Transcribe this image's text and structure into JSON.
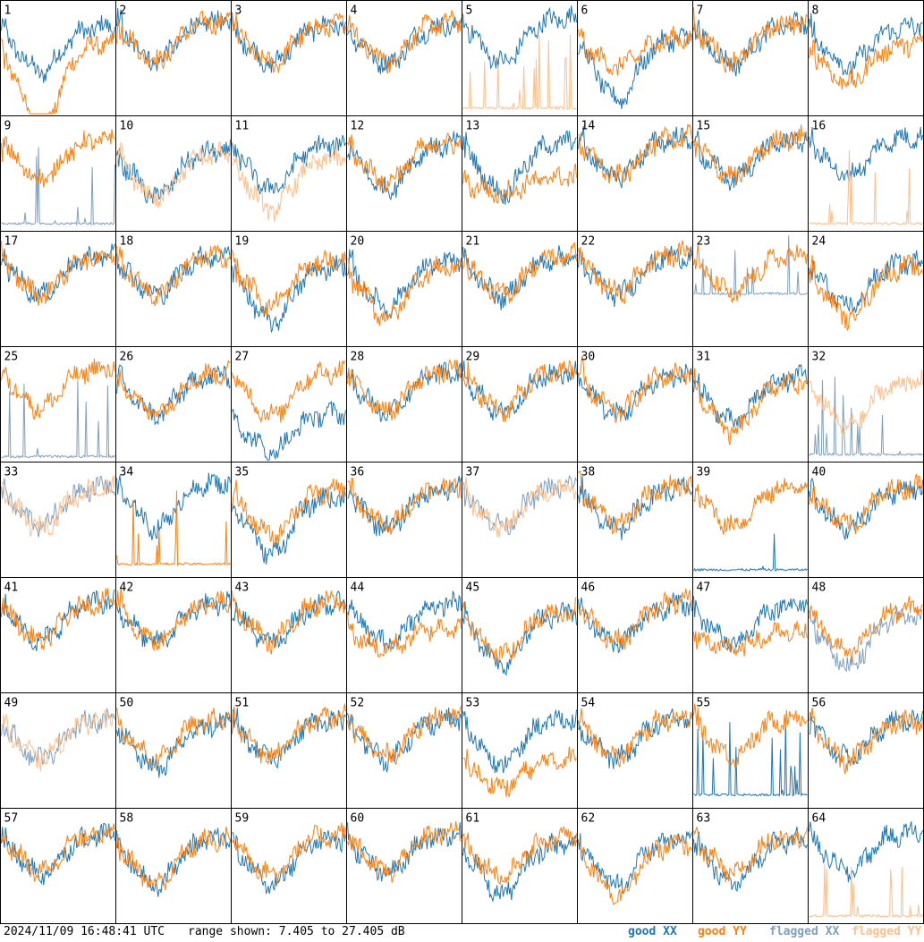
{
  "chart_data": {
    "type": "line",
    "grid": {
      "rows": 8,
      "cols": 8
    },
    "y_range_db": [
      7.405,
      27.405
    ],
    "panels": [
      {
        "label": "1",
        "xx": "good",
        "yy": "good",
        "xx_level": 0.7,
        "yy_level": 0.55,
        "xx_drop": 0.35,
        "yy_drop": 0.7
      },
      {
        "label": "2",
        "xx": "good",
        "yy": "good",
        "xx_level": 0.75,
        "yy_level": 0.75,
        "xx_drop": 0.3,
        "yy_drop": 0.3
      },
      {
        "label": "3",
        "xx": "good",
        "yy": "good",
        "xx_level": 0.72,
        "yy_level": 0.72,
        "xx_drop": 0.3,
        "yy_drop": 0.3
      },
      {
        "label": "4",
        "xx": "good",
        "yy": "good",
        "xx_level": 0.72,
        "yy_level": 0.74,
        "xx_drop": 0.3,
        "yy_drop": 0.3
      },
      {
        "label": "5",
        "xx": "good",
        "yy": "flagged-spiky",
        "xx_level": 0.78,
        "yy_level": 0.05,
        "xx_drop": 0.35,
        "yy_drop": 0.0
      },
      {
        "label": "6",
        "xx": "good",
        "yy": "good",
        "xx_level": 0.6,
        "yy_level": 0.6,
        "xx_drop": 0.5,
        "yy_drop": 0.2
      },
      {
        "label": "7",
        "xx": "good",
        "yy": "good",
        "xx_level": 0.72,
        "yy_level": 0.74,
        "xx_drop": 0.3,
        "yy_drop": 0.3
      },
      {
        "label": "8",
        "xx": "good",
        "yy": "good",
        "xx_level": 0.7,
        "yy_level": 0.55,
        "xx_drop": 0.3,
        "yy_drop": 0.3
      },
      {
        "label": "9",
        "xx": "flagged-spiky",
        "yy": "good",
        "xx_level": 0.05,
        "yy_level": 0.72,
        "xx_drop": 0.0,
        "yy_drop": 0.3
      },
      {
        "label": "10",
        "xx": "good",
        "yy": "flagged",
        "xx_level": 0.62,
        "yy_level": 0.6,
        "xx_drop": 0.35,
        "yy_drop": 0.35
      },
      {
        "label": "11",
        "xx": "good",
        "yy": "flagged",
        "xx_level": 0.68,
        "yy_level": 0.55,
        "xx_drop": 0.35,
        "yy_drop": 0.4
      },
      {
        "label": "12",
        "xx": "good",
        "yy": "good",
        "xx_level": 0.68,
        "yy_level": 0.7,
        "xx_drop": 0.35,
        "yy_drop": 0.3
      },
      {
        "label": "13",
        "xx": "good",
        "yy": "good",
        "xx_level": 0.7,
        "yy_level": 0.4,
        "xx_drop": 0.4,
        "yy_drop": 0.1
      },
      {
        "label": "14",
        "xx": "good",
        "yy": "good",
        "xx_level": 0.74,
        "yy_level": 0.74,
        "xx_drop": 0.3,
        "yy_drop": 0.3
      },
      {
        "label": "15",
        "xx": "good",
        "yy": "good",
        "xx_level": 0.72,
        "yy_level": 0.74,
        "xx_drop": 0.3,
        "yy_drop": 0.3
      },
      {
        "label": "16",
        "xx": "good",
        "yy": "flagged-spiky",
        "xx_level": 0.75,
        "yy_level": 0.05,
        "xx_drop": 0.3,
        "yy_drop": 0.0
      },
      {
        "label": "17",
        "xx": "good",
        "yy": "good",
        "xx_level": 0.72,
        "yy_level": 0.72,
        "xx_drop": 0.3,
        "yy_drop": 0.3
      },
      {
        "label": "18",
        "xx": "good",
        "yy": "good",
        "xx_level": 0.72,
        "yy_level": 0.72,
        "xx_drop": 0.3,
        "yy_drop": 0.3
      },
      {
        "label": "19",
        "xx": "good",
        "yy": "good",
        "xx_level": 0.62,
        "yy_level": 0.68,
        "xx_drop": 0.45,
        "yy_drop": 0.35
      },
      {
        "label": "20",
        "xx": "good",
        "yy": "good",
        "xx_level": 0.66,
        "yy_level": 0.62,
        "xx_drop": 0.35,
        "yy_drop": 0.4
      },
      {
        "label": "21",
        "xx": "good",
        "yy": "good",
        "xx_level": 0.7,
        "yy_level": 0.72,
        "xx_drop": 0.3,
        "yy_drop": 0.3
      },
      {
        "label": "22",
        "xx": "good",
        "yy": "good",
        "xx_level": 0.72,
        "yy_level": 0.74,
        "xx_drop": 0.3,
        "yy_drop": 0.3
      },
      {
        "label": "23",
        "xx": "flagged-spiky",
        "yy": "good",
        "xx_level": 0.45,
        "yy_level": 0.72,
        "xx_drop": 0.0,
        "yy_drop": 0.3
      },
      {
        "label": "24",
        "xx": "good",
        "yy": "good",
        "xx_level": 0.66,
        "yy_level": 0.62,
        "xx_drop": 0.35,
        "yy_drop": 0.4
      },
      {
        "label": "25",
        "xx": "flagged-spiky",
        "yy": "good",
        "xx_level": 0.03,
        "yy_level": 0.74,
        "xx_drop": 0.0,
        "yy_drop": 0.3
      },
      {
        "label": "26",
        "xx": "good",
        "yy": "good",
        "xx_level": 0.68,
        "yy_level": 0.7,
        "xx_drop": 0.3,
        "yy_drop": 0.3
      },
      {
        "label": "27",
        "xx": "good",
        "yy": "good",
        "xx_level": 0.35,
        "yy_level": 0.72,
        "xx_drop": 0.3,
        "yy_drop": 0.35
      },
      {
        "label": "28",
        "xx": "good",
        "yy": "good",
        "xx_level": 0.7,
        "yy_level": 0.72,
        "xx_drop": 0.3,
        "yy_drop": 0.3
      },
      {
        "label": "29",
        "xx": "good",
        "yy": "good",
        "xx_level": 0.7,
        "yy_level": 0.72,
        "xx_drop": 0.3,
        "yy_drop": 0.3
      },
      {
        "label": "30",
        "xx": "good",
        "yy": "good",
        "xx_level": 0.68,
        "yy_level": 0.7,
        "xx_drop": 0.3,
        "yy_drop": 0.3
      },
      {
        "label": "31",
        "xx": "good",
        "yy": "good",
        "xx_level": 0.66,
        "yy_level": 0.62,
        "xx_drop": 0.35,
        "yy_drop": 0.4
      },
      {
        "label": "32",
        "xx": "flagged-spiky",
        "yy": "flagged",
        "xx_level": 0.05,
        "yy_level": 0.62,
        "xx_drop": 0.0,
        "yy_drop": 0.35
      },
      {
        "label": "33",
        "xx": "flagged",
        "yy": "flagged",
        "xx_level": 0.72,
        "yy_level": 0.7,
        "xx_drop": 0.3,
        "yy_drop": 0.3
      },
      {
        "label": "34",
        "xx": "good",
        "yy": "good-spiky",
        "xx_level": 0.75,
        "yy_level": 0.1,
        "xx_drop": 0.35,
        "yy_drop": 0.0
      },
      {
        "label": "35",
        "xx": "good",
        "yy": "good",
        "xx_level": 0.62,
        "yy_level": 0.68,
        "xx_drop": 0.45,
        "yy_drop": 0.35
      },
      {
        "label": "36",
        "xx": "good",
        "yy": "good",
        "xx_level": 0.7,
        "yy_level": 0.72,
        "xx_drop": 0.3,
        "yy_drop": 0.3
      },
      {
        "label": "37",
        "xx": "flagged",
        "yy": "flagged",
        "xx_level": 0.72,
        "yy_level": 0.7,
        "xx_drop": 0.3,
        "yy_drop": 0.3
      },
      {
        "label": "38",
        "xx": "good",
        "yy": "good",
        "xx_level": 0.7,
        "yy_level": 0.74,
        "xx_drop": 0.3,
        "yy_drop": 0.3
      },
      {
        "label": "39",
        "xx": "good-spiky",
        "yy": "good",
        "xx_level": 0.05,
        "yy_level": 0.72,
        "xx_drop": 0.0,
        "yy_drop": 0.3
      },
      {
        "label": "40",
        "xx": "good",
        "yy": "good",
        "xx_level": 0.7,
        "yy_level": 0.72,
        "xx_drop": 0.3,
        "yy_drop": 0.3
      },
      {
        "label": "41",
        "xx": "good",
        "yy": "good",
        "xx_level": 0.72,
        "yy_level": 0.72,
        "xx_drop": 0.3,
        "yy_drop": 0.3
      },
      {
        "label": "42",
        "xx": "good",
        "yy": "good",
        "xx_level": 0.7,
        "yy_level": 0.72,
        "xx_drop": 0.3,
        "yy_drop": 0.3
      },
      {
        "label": "43",
        "xx": "good",
        "yy": "good",
        "xx_level": 0.7,
        "yy_level": 0.72,
        "xx_drop": 0.3,
        "yy_drop": 0.3
      },
      {
        "label": "44",
        "xx": "good",
        "yy": "good",
        "xx_level": 0.7,
        "yy_level": 0.5,
        "xx_drop": 0.3,
        "yy_drop": 0.15
      },
      {
        "label": "45",
        "xx": "good",
        "yy": "good",
        "xx_level": 0.62,
        "yy_level": 0.64,
        "xx_drop": 0.4,
        "yy_drop": 0.35
      },
      {
        "label": "46",
        "xx": "good",
        "yy": "good",
        "xx_level": 0.7,
        "yy_level": 0.72,
        "xx_drop": 0.3,
        "yy_drop": 0.3
      },
      {
        "label": "47",
        "xx": "good",
        "yy": "good",
        "xx_level": 0.7,
        "yy_level": 0.45,
        "xx_drop": 0.3,
        "yy_drop": 0.1
      },
      {
        "label": "48",
        "xx": "flagged",
        "yy": "good",
        "xx_level": 0.6,
        "yy_level": 0.66,
        "xx_drop": 0.4,
        "yy_drop": 0.35
      },
      {
        "label": "49",
        "xx": "flagged",
        "yy": "flagged",
        "xx_level": 0.7,
        "yy_level": 0.7,
        "xx_drop": 0.3,
        "yy_drop": 0.3
      },
      {
        "label": "50",
        "xx": "good",
        "yy": "good",
        "xx_level": 0.66,
        "yy_level": 0.7,
        "xx_drop": 0.35,
        "yy_drop": 0.3
      },
      {
        "label": "51",
        "xx": "good",
        "yy": "good",
        "xx_level": 0.7,
        "yy_level": 0.72,
        "xx_drop": 0.3,
        "yy_drop": 0.3
      },
      {
        "label": "52",
        "xx": "good",
        "yy": "good",
        "xx_level": 0.7,
        "yy_level": 0.72,
        "xx_drop": 0.3,
        "yy_drop": 0.3
      },
      {
        "label": "53",
        "xx": "good",
        "yy": "good",
        "xx_level": 0.7,
        "yy_level": 0.35,
        "xx_drop": 0.35,
        "yy_drop": 0.2
      },
      {
        "label": "54",
        "xx": "good",
        "yy": "good",
        "xx_level": 0.7,
        "yy_level": 0.72,
        "xx_drop": 0.3,
        "yy_drop": 0.3
      },
      {
        "label": "55",
        "xx": "good-spiky",
        "yy": "good",
        "xx_level": 0.1,
        "yy_level": 0.72,
        "xx_drop": 0.0,
        "yy_drop": 0.3
      },
      {
        "label": "56",
        "xx": "good",
        "yy": "good",
        "xx_level": 0.7,
        "yy_level": 0.68,
        "xx_drop": 0.3,
        "yy_drop": 0.3
      },
      {
        "label": "57",
        "xx": "good",
        "yy": "good",
        "xx_level": 0.7,
        "yy_level": 0.72,
        "xx_drop": 0.3,
        "yy_drop": 0.3
      },
      {
        "label": "58",
        "xx": "good",
        "yy": "good",
        "xx_level": 0.66,
        "yy_level": 0.66,
        "xx_drop": 0.35,
        "yy_drop": 0.35
      },
      {
        "label": "59",
        "xx": "good",
        "yy": "good",
        "xx_level": 0.66,
        "yy_level": 0.7,
        "xx_drop": 0.35,
        "yy_drop": 0.3
      },
      {
        "label": "60",
        "xx": "good",
        "yy": "good",
        "xx_level": 0.7,
        "yy_level": 0.72,
        "xx_drop": 0.3,
        "yy_drop": 0.3
      },
      {
        "label": "61",
        "xx": "good",
        "yy": "good",
        "xx_level": 0.62,
        "yy_level": 0.68,
        "xx_drop": 0.4,
        "yy_drop": 0.3
      },
      {
        "label": "62",
        "xx": "good",
        "yy": "good",
        "xx_level": 0.66,
        "yy_level": 0.62,
        "xx_drop": 0.35,
        "yy_drop": 0.4
      },
      {
        "label": "63",
        "xx": "good",
        "yy": "good",
        "xx_level": 0.66,
        "yy_level": 0.7,
        "xx_drop": 0.35,
        "yy_drop": 0.3
      },
      {
        "label": "64",
        "xx": "good",
        "yy": "flagged-spiky",
        "xx_level": 0.72,
        "yy_level": 0.05,
        "xx_drop": 0.3,
        "yy_drop": 0.0
      }
    ],
    "legend": [
      {
        "label": "good XX",
        "color": "#1f77b4"
      },
      {
        "label": "good YY",
        "color": "#ff7f0e"
      },
      {
        "label": "flagged XX",
        "color": "#7f9fbf"
      },
      {
        "label": "flagged YY",
        "color": "#ffbf8a"
      }
    ]
  },
  "footer": {
    "timestamp": "2024/11/09 16:48:41 UTC",
    "range": "range shown: 7.405 to 27.405 dB"
  },
  "colors": {
    "good_xx": "#1f77b4",
    "good_yy": "#ff7f0e",
    "flagged_xx": "#7f9fbf",
    "flagged_yy": "#ffbf8a",
    "border": "#000000"
  }
}
